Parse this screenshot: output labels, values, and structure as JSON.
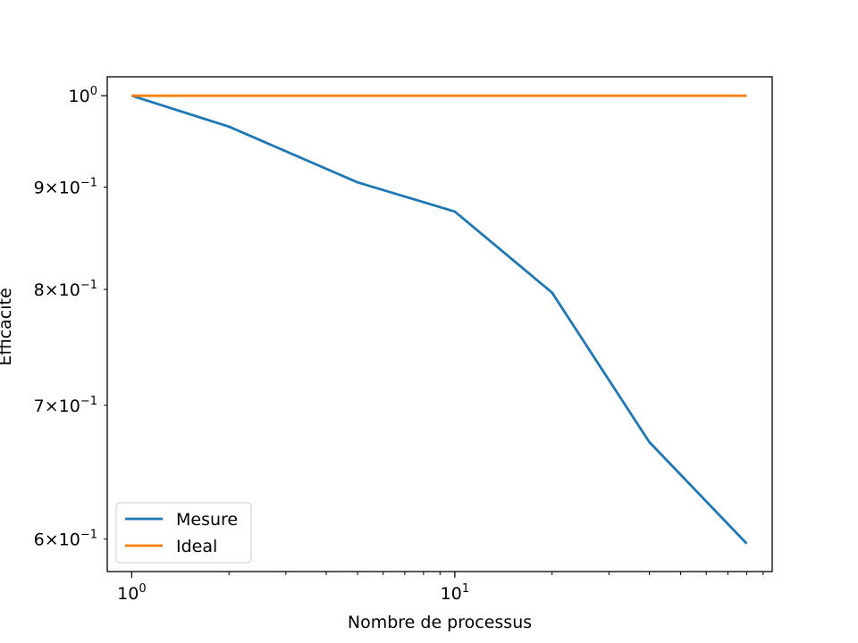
{
  "chart_data": {
    "type": "line",
    "title": "",
    "xlabel": "Nombre de processus",
    "ylabel": "Efficacité",
    "xscale": "log",
    "yscale": "log",
    "xlim": [
      0.84,
      96
    ],
    "ylim": [
      0.578,
      1.022
    ],
    "x_ticks": [
      {
        "value": 1,
        "base": "10",
        "exp": "0"
      },
      {
        "value": 10,
        "base": "10",
        "exp": "1"
      }
    ],
    "y_ticks": [
      {
        "value": 1.0,
        "mant": "",
        "base": "10",
        "exp": "0"
      },
      {
        "value": 0.9,
        "mant": "9",
        "base": "10",
        "exp": "−1"
      },
      {
        "value": 0.8,
        "mant": "8",
        "base": "10",
        "exp": "−1"
      },
      {
        "value": 0.7,
        "mant": "7",
        "base": "10",
        "exp": "−1"
      },
      {
        "value": 0.6,
        "mant": "6",
        "base": "10",
        "exp": "−1"
      }
    ],
    "series": [
      {
        "name": "Mesure",
        "color": "#1f77b4",
        "x": [
          1,
          2,
          5,
          10,
          20,
          40,
          80
        ],
        "y": [
          1.0,
          0.965,
          0.905,
          0.875,
          0.797,
          0.671,
          0.597
        ]
      },
      {
        "name": "Ideal",
        "color": "#ff7f0e",
        "x": [
          1,
          2,
          5,
          10,
          20,
          40,
          80
        ],
        "y": [
          1.0,
          1.0,
          1.0,
          1.0,
          1.0,
          1.0,
          1.0
        ]
      }
    ],
    "legend_position": "lower-left",
    "grid": false
  }
}
